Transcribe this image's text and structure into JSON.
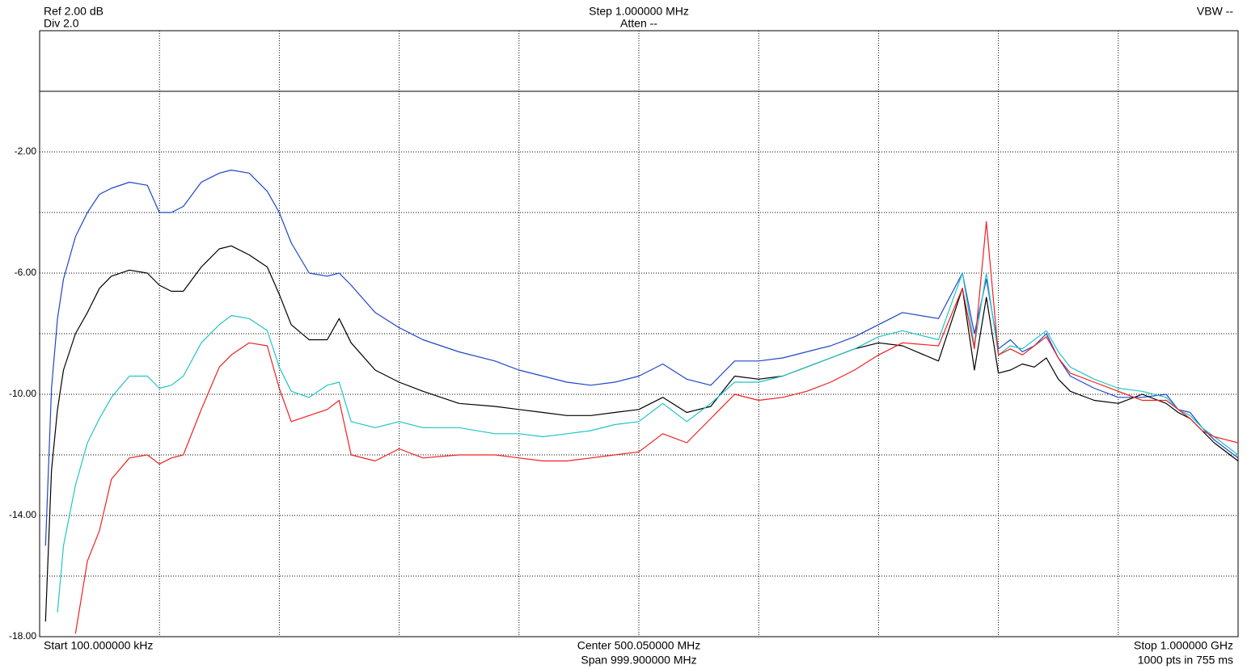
{
  "header": {
    "ref": "Ref 2.00 dB",
    "div": "Div 2.0",
    "step": "Step 1.000000 MHz",
    "atten": "Atten --",
    "vbw": "VBW --"
  },
  "footer": {
    "start": "Start 100.000000 kHz",
    "center": "Center 500.050000 MHz",
    "span": "Span 999.900000 MHz",
    "stop": "Stop 1.000000 GHz",
    "points": "1000 pts in 755 ms"
  },
  "chart_data": {
    "type": "line",
    "xlim": [
      0.1,
      1000
    ],
    "ylim": [
      -18,
      2
    ],
    "xgrid": [
      100.09,
      200.08,
      300.07,
      400.06,
      500.05,
      600.04,
      700.03,
      800.02,
      900.01
    ],
    "yticks": [
      {
        "value": -2,
        "label": "-2.00"
      },
      {
        "value": -6,
        "label": "-6.00"
      },
      {
        "value": -10,
        "label": "-10.00"
      },
      {
        "value": -14,
        "label": "-14.00"
      },
      {
        "value": -18,
        "label": "-18.00"
      }
    ],
    "ygrid": [
      -16,
      -12,
      -8,
      -4
    ],
    "reference_line": 0,
    "x": [
      5,
      10,
      15,
      20,
      30,
      40,
      50,
      60,
      75,
      90,
      100,
      110,
      120,
      135,
      150,
      160,
      175,
      190,
      200,
      210,
      225,
      240,
      250,
      260,
      280,
      300,
      320,
      350,
      380,
      400,
      420,
      440,
      460,
      480,
      500,
      520,
      540,
      560,
      580,
      600,
      620,
      640,
      660,
      680,
      700,
      720,
      750,
      770,
      780,
      790,
      800,
      810,
      820,
      830,
      840,
      850,
      860,
      880,
      900,
      920,
      940,
      950,
      960,
      970,
      980,
      1000
    ],
    "series": [
      {
        "color": "#1f45c8",
        "values": [
          -15.0,
          -9.8,
          -7.5,
          -6.2,
          -4.8,
          -4.0,
          -3.4,
          -3.2,
          -3.0,
          -3.1,
          -4.0,
          -4.0,
          -3.8,
          -3.0,
          -2.7,
          -2.6,
          -2.7,
          -3.3,
          -4.0,
          -5.0,
          -6.0,
          -6.1,
          -6.0,
          -6.4,
          -7.3,
          -7.8,
          -8.2,
          -8.6,
          -8.9,
          -9.2,
          -9.4,
          -9.6,
          -9.7,
          -9.6,
          -9.4,
          -9.0,
          -9.5,
          -9.7,
          -8.9,
          -8.9,
          -8.8,
          -8.6,
          -8.4,
          -8.1,
          -7.7,
          -7.3,
          -7.5,
          -6.0,
          -8.0,
          -6.2,
          -8.5,
          -8.2,
          -8.6,
          -8.4,
          -8.0,
          -8.8,
          -9.4,
          -9.8,
          -10.1,
          -10.1,
          -10.0,
          -10.5,
          -10.6,
          -11.1,
          -11.5,
          -12.1
        ]
      },
      {
        "color": "#000000",
        "values": [
          -17.5,
          -12.5,
          -10.5,
          -9.2,
          -8.0,
          -7.3,
          -6.5,
          -6.1,
          -5.9,
          -6.0,
          -6.4,
          -6.6,
          -6.6,
          -5.8,
          -5.2,
          -5.1,
          -5.4,
          -5.8,
          -6.7,
          -7.7,
          -8.2,
          -8.2,
          -7.5,
          -8.3,
          -9.2,
          -9.6,
          -9.9,
          -10.3,
          -10.4,
          -10.5,
          -10.6,
          -10.7,
          -10.7,
          -10.6,
          -10.5,
          -10.1,
          -10.6,
          -10.4,
          -9.4,
          -9.5,
          -9.4,
          -9.1,
          -8.8,
          -8.5,
          -8.3,
          -8.4,
          -8.9,
          -6.5,
          -9.2,
          -6.8,
          -9.3,
          -9.2,
          -9.0,
          -9.1,
          -8.8,
          -9.5,
          -9.9,
          -10.2,
          -10.3,
          -10.0,
          -10.3,
          -10.6,
          -10.8,
          -11.2,
          -11.6,
          -12.2
        ]
      },
      {
        "color": "#22c4c4",
        "values": [
          null,
          null,
          -17.2,
          -15.0,
          -13.0,
          -11.6,
          -10.8,
          -10.1,
          -9.4,
          -9.4,
          -9.8,
          -9.7,
          -9.4,
          -8.3,
          -7.7,
          -7.4,
          -7.5,
          -7.9,
          -9.1,
          -9.9,
          -10.1,
          -9.7,
          -9.6,
          -10.9,
          -11.1,
          -10.9,
          -11.1,
          -11.1,
          -11.3,
          -11.3,
          -11.4,
          -11.3,
          -11.2,
          -11.0,
          -10.9,
          -10.3,
          -10.9,
          -10.3,
          -9.6,
          -9.6,
          -9.4,
          -9.1,
          -8.8,
          -8.5,
          -8.1,
          -7.9,
          -8.2,
          -6.0,
          -8.4,
          -6.0,
          -8.7,
          -8.4,
          -8.5,
          -8.2,
          -7.9,
          -8.6,
          -9.1,
          -9.5,
          -9.8,
          -9.9,
          -10.1,
          -10.5,
          -10.7,
          -11.1,
          -11.4,
          -12.0
        ]
      },
      {
        "color": "#ee2020",
        "values": [
          null,
          null,
          null,
          null,
          -17.9,
          -15.5,
          -14.5,
          -12.8,
          -12.1,
          -12.0,
          -12.3,
          -12.1,
          -12.0,
          -10.5,
          -9.1,
          -8.7,
          -8.3,
          -8.4,
          -9.8,
          -10.9,
          -10.7,
          -10.5,
          -10.2,
          -12.0,
          -12.2,
          -11.8,
          -12.1,
          -12.0,
          -12.0,
          -12.1,
          -12.2,
          -12.2,
          -12.1,
          -12.0,
          -11.9,
          -11.3,
          -11.6,
          -10.8,
          -10.0,
          -10.2,
          -10.1,
          -9.9,
          -9.6,
          -9.2,
          -8.7,
          -8.3,
          -8.4,
          -6.5,
          -8.5,
          -4.3,
          -8.7,
          -8.5,
          -8.7,
          -8.4,
          -8.1,
          -8.8,
          -9.3,
          -9.6,
          -9.9,
          -10.2,
          -10.2,
          -10.5,
          -10.8,
          -11.2,
          -11.4,
          -11.6
        ]
      }
    ]
  }
}
